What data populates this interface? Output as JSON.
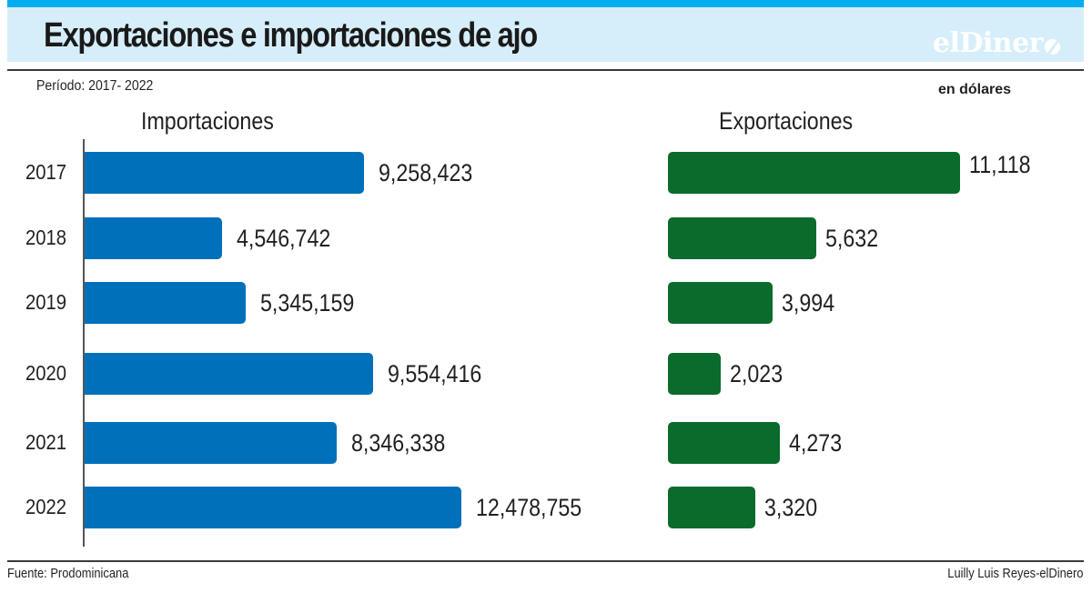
{
  "header": {
    "title": "Exportaciones e importaciones de ajo",
    "logo": "elDiner",
    "period": "Período: 2017- 2022",
    "units": "en dólares"
  },
  "colors": {
    "stripe": "#00aeef",
    "title_band": "#d6eefa",
    "imports": "#0070bb",
    "exports": "#0b6b2c"
  },
  "footer": {
    "source": "Fuente: Prodominicana",
    "credit": "Luilly Luis Reyes-elDinero"
  },
  "chart_data": [
    {
      "type": "bar",
      "orientation": "horizontal",
      "title": "Importaciones",
      "categories": [
        "2017",
        "2018",
        "2019",
        "2020",
        "2021",
        "2022"
      ],
      "values": [
        9258423,
        4546742,
        5345159,
        9554416,
        8346338,
        12478755
      ],
      "labels": [
        "9,258,423",
        "4,546,742",
        "5,345,159",
        "9,554,416",
        "8,346,338",
        "12,478,755"
      ],
      "units": "en dólares",
      "color": "#0070bb",
      "xlim": [
        0,
        12478755
      ],
      "grid": false
    },
    {
      "type": "bar",
      "orientation": "horizontal",
      "title": "Exportaciones",
      "categories": [
        "2017",
        "2018",
        "2019",
        "2020",
        "2021",
        "2022"
      ],
      "values": [
        11118,
        5632,
        3994,
        2023,
        4273,
        3320
      ],
      "labels": [
        "11,118",
        "5,632",
        "3,994",
        "2,023",
        "4,273",
        "3,320"
      ],
      "units": "en dólares",
      "color": "#0b6b2c",
      "xlim": [
        0,
        11118
      ],
      "grid": false
    }
  ]
}
